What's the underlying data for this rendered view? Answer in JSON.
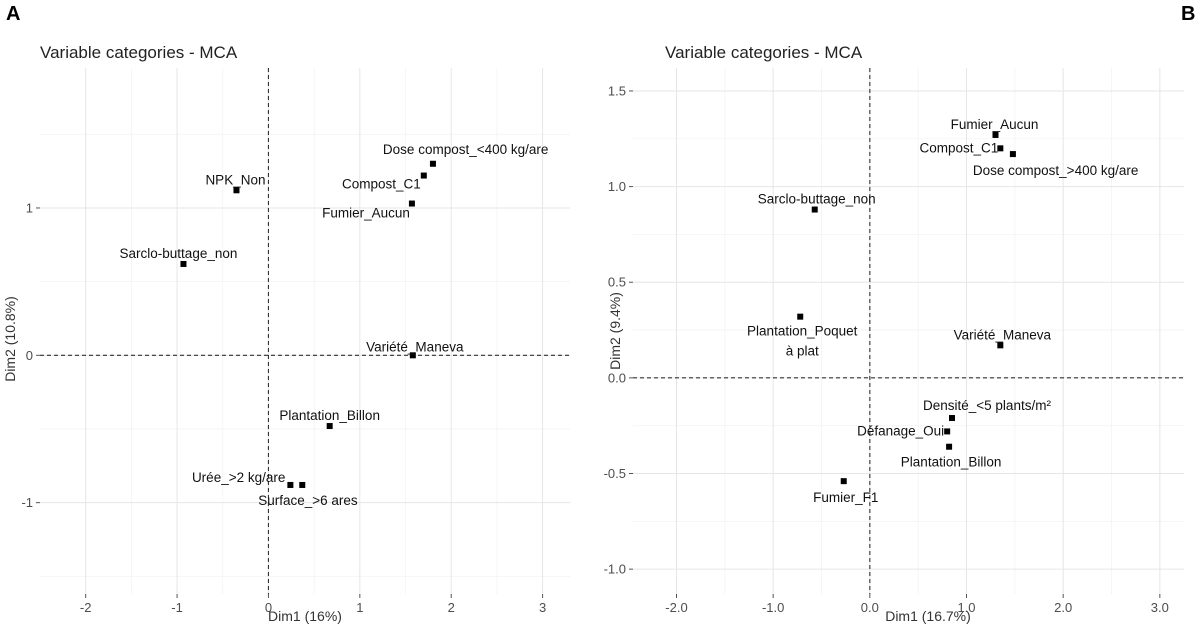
{
  "chart_data": [
    {
      "type": "scatter",
      "panel_label": "A",
      "title": "Variable categories - MCA",
      "xlabel": "Dim1 (16%)",
      "ylabel": "Dim2 (10.8%)",
      "xlim": [
        -2.5,
        3.3
      ],
      "ylim": [
        -1.62,
        1.95
      ],
      "xticks": [
        -2,
        -1,
        0,
        1,
        2,
        3
      ],
      "yticks": [
        -1,
        0,
        1
      ],
      "grid": true,
      "points": [
        {
          "label": "Dose compost_<400 kg/are",
          "x": 1.8,
          "y": 1.3
        },
        {
          "label": "Compost_C1",
          "x": 1.7,
          "y": 1.22
        },
        {
          "label": "Fumier_Aucun",
          "x": 1.57,
          "y": 1.03
        },
        {
          "label": "NPK_Non",
          "x": -0.35,
          "y": 1.12
        },
        {
          "label": "Sarclo-buttage_non",
          "x": -0.93,
          "y": 0.62
        },
        {
          "label": "Variété_Maneva",
          "x": 1.58,
          "y": 0.0
        },
        {
          "label": "Plantation_Billon",
          "x": 0.67,
          "y": -0.48
        },
        {
          "label": "Urée_>2 kg/are",
          "x": 0.24,
          "y": -0.88
        },
        {
          "label": "Surface_>6 ares",
          "x": 0.37,
          "y": -0.88
        }
      ]
    },
    {
      "type": "scatter",
      "panel_label": "B",
      "title": "Variable categories - MCA",
      "xlabel": "Dim1 (16.7%)",
      "ylabel": "Dim2 (9.4%)",
      "xlim": [
        -2.45,
        3.25
      ],
      "ylim": [
        -1.13,
        1.62
      ],
      "xticks": [
        -2,
        -1,
        0,
        1,
        2,
        3
      ],
      "yticks": [
        -1.0,
        -0.5,
        0.0,
        0.5,
        1.0,
        1.5
      ],
      "grid": true,
      "points": [
        {
          "label": "Fumier_Aucun",
          "x": 1.3,
          "y": 1.27
        },
        {
          "label": "Compost_C1",
          "x": 1.35,
          "y": 1.2
        },
        {
          "label": "Dose compost_>400 kg/are",
          "x": 1.48,
          "y": 1.17
        },
        {
          "label": "Sarclo-buttage_non",
          "x": -0.57,
          "y": 0.88
        },
        {
          "label": "Plantation_Poquet",
          "label_line2": "à plat",
          "x": -0.72,
          "y": 0.32
        },
        {
          "label": "Variété_Maneva",
          "x": 1.35,
          "y": 0.17
        },
        {
          "label": "Densité_<5 plants/m²",
          "x": 0.85,
          "y": -0.21
        },
        {
          "label": "Défanage_Oui",
          "x": 0.8,
          "y": -0.28
        },
        {
          "label": "Plantation_Billon",
          "x": 0.82,
          "y": -0.36
        },
        {
          "label": "Fumier_F1",
          "x": -0.27,
          "y": -0.54
        }
      ]
    }
  ]
}
